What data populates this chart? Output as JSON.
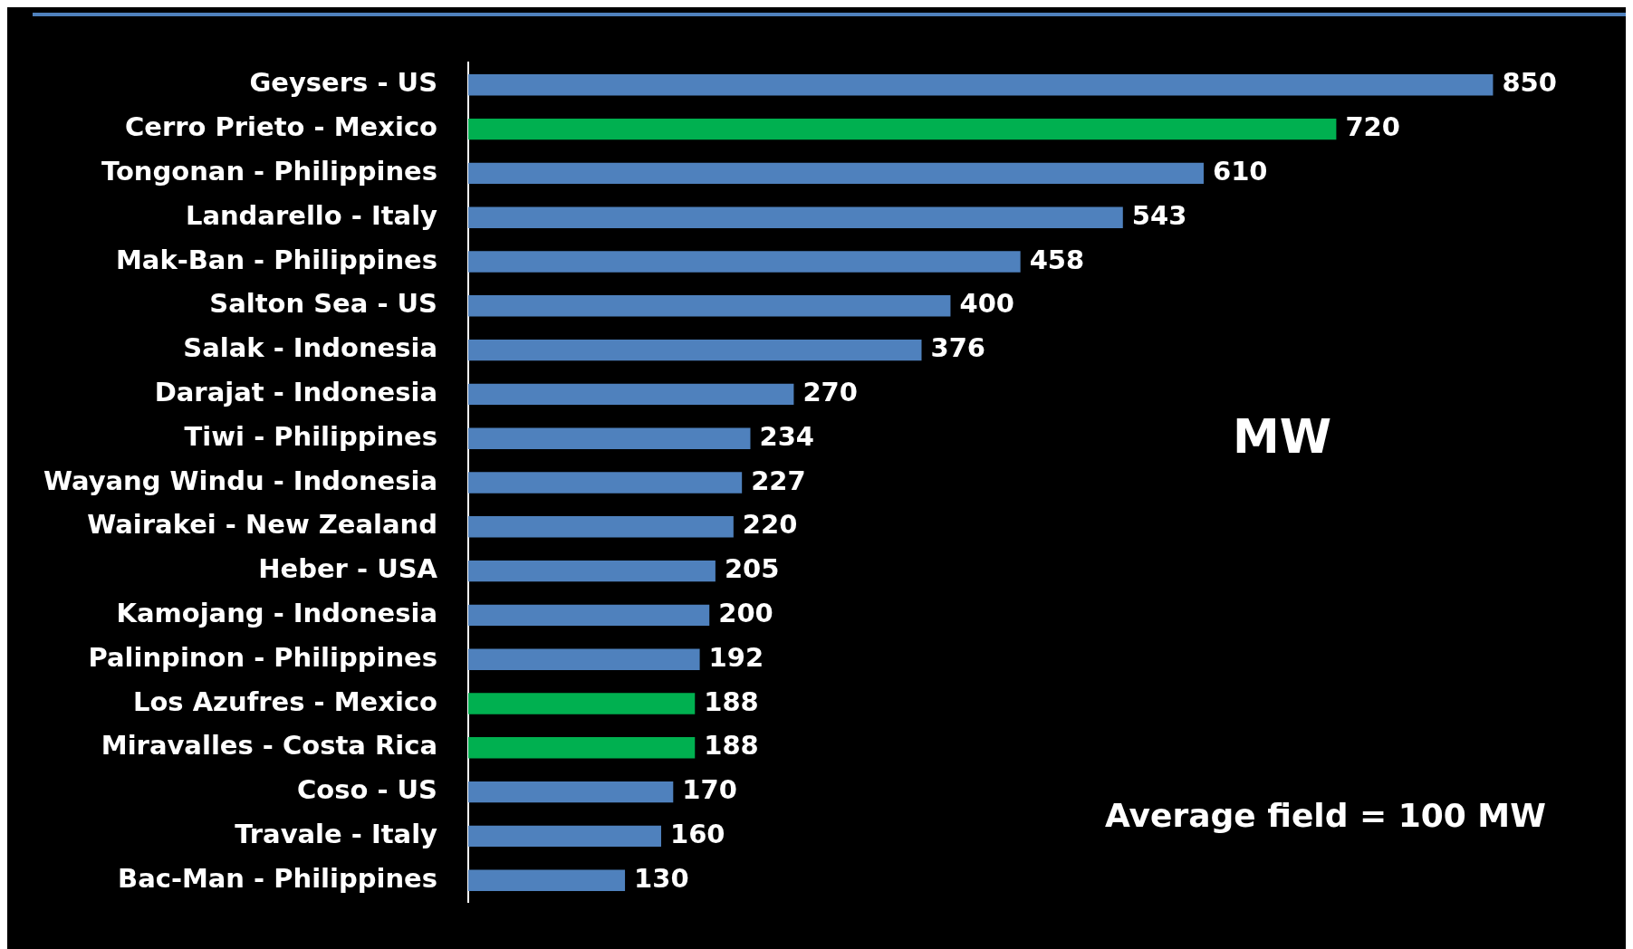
{
  "chart_data": {
    "type": "bar",
    "orientation": "horizontal",
    "categories": [
      "Geysers - US",
      "Cerro Prieto - Mexico",
      "Tongonan - Philippines",
      "Landarello - Italy",
      "Mak-Ban - Philippines",
      "Salton Sea - US",
      "Salak - Indonesia",
      "Darajat - Indonesia",
      "Tiwi - Philippines",
      "Wayang Windu - Indonesia",
      "Wairakei - New Zealand",
      "Heber - USA",
      "Kamojang - Indonesia",
      "Palinpinon - Philippines",
      "Los Azufres - Mexico",
      "Miravalles - Costa Rica",
      "Coso - US",
      "Travale - Italy",
      "Bac-Man - Philippines"
    ],
    "values": [
      850,
      720,
      610,
      543,
      458,
      400,
      376,
      270,
      234,
      227,
      220,
      205,
      200,
      192,
      188,
      188,
      170,
      160,
      130
    ],
    "colors": [
      "#4f81bd",
      "#00b050",
      "#4f81bd",
      "#4f81bd",
      "#4f81bd",
      "#4f81bd",
      "#4f81bd",
      "#4f81bd",
      "#4f81bd",
      "#4f81bd",
      "#4f81bd",
      "#4f81bd",
      "#4f81bd",
      "#4f81bd",
      "#00b050",
      "#00b050",
      "#4f81bd",
      "#4f81bd",
      "#4f81bd"
    ],
    "data_labels": true,
    "grid": false,
    "legend": false,
    "annotations": [
      "MW",
      "Average field = 100 MW"
    ]
  }
}
